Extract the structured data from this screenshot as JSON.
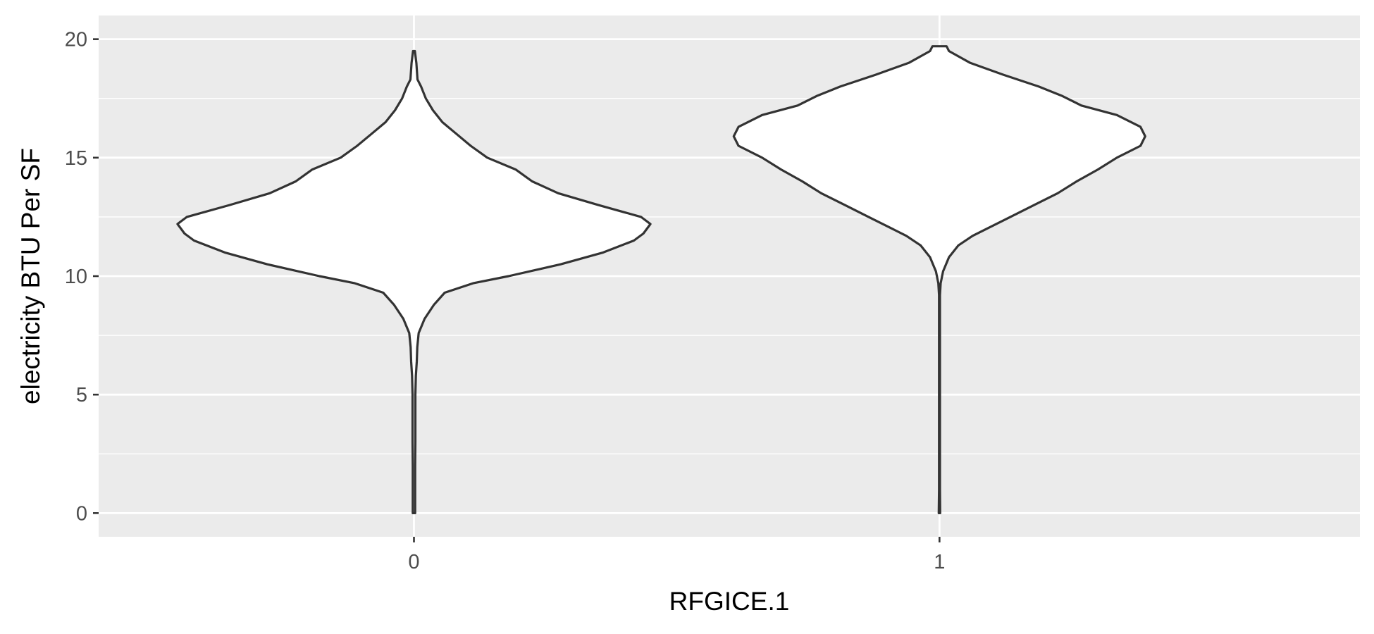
{
  "chart_data": {
    "type": "violin",
    "xlabel": "RFGICE.1",
    "ylabel": "electricity BTU Per SF",
    "categories": [
      "0",
      "1"
    ],
    "ylim": [
      -1,
      21
    ],
    "yticks": [
      0,
      5,
      10,
      15,
      20
    ],
    "grid": true,
    "legend": "none",
    "colors": {
      "panel": "#ebebeb",
      "grid": "#ffffff",
      "violin_fill": "#ffffff",
      "violin_outline": "#333333",
      "tick_text": "#4d4d4d",
      "axis_title": "#000000"
    },
    "series": [
      {
        "category": "0",
        "y_min": 0,
        "y_max": 19.5,
        "profile": [
          [
            0.0,
            0.005
          ],
          [
            1.0,
            0.005
          ],
          [
            2.0,
            0.005
          ],
          [
            3.0,
            0.006
          ],
          [
            4.0,
            0.006
          ],
          [
            5.0,
            0.006
          ],
          [
            5.8,
            0.008
          ],
          [
            6.4,
            0.012
          ],
          [
            7.0,
            0.014
          ],
          [
            7.6,
            0.02
          ],
          [
            8.2,
            0.045
          ],
          [
            8.8,
            0.085
          ],
          [
            9.3,
            0.13
          ],
          [
            9.7,
            0.25
          ],
          [
            10.0,
            0.4
          ],
          [
            10.5,
            0.62
          ],
          [
            11.0,
            0.8
          ],
          [
            11.5,
            0.93
          ],
          [
            11.8,
            0.97
          ],
          [
            12.2,
            1.0
          ],
          [
            12.5,
            0.96
          ],
          [
            13.0,
            0.78
          ],
          [
            13.5,
            0.61
          ],
          [
            14.0,
            0.5
          ],
          [
            14.5,
            0.43
          ],
          [
            15.0,
            0.31
          ],
          [
            15.5,
            0.24
          ],
          [
            16.0,
            0.18
          ],
          [
            16.5,
            0.12
          ],
          [
            17.0,
            0.08
          ],
          [
            17.5,
            0.05
          ],
          [
            18.0,
            0.03
          ],
          [
            18.3,
            0.015
          ],
          [
            19.0,
            0.01
          ],
          [
            19.5,
            0.004
          ]
        ]
      },
      {
        "category": "1",
        "y_min": 0,
        "y_max": 19.7,
        "profile": [
          [
            0.0,
            0.003
          ],
          [
            1.0,
            0.002
          ],
          [
            3.0,
            0.002
          ],
          [
            5.0,
            0.002
          ],
          [
            7.0,
            0.002
          ],
          [
            8.5,
            0.002
          ],
          [
            9.2,
            0.002
          ],
          [
            9.7,
            0.005
          ],
          [
            10.2,
            0.015
          ],
          [
            10.8,
            0.04
          ],
          [
            11.3,
            0.08
          ],
          [
            11.7,
            0.14
          ],
          [
            12.0,
            0.2
          ],
          [
            12.5,
            0.3
          ],
          [
            13.0,
            0.4
          ],
          [
            13.5,
            0.5
          ],
          [
            14.0,
            0.58
          ],
          [
            14.5,
            0.67
          ],
          [
            15.0,
            0.75
          ],
          [
            15.5,
            0.85
          ],
          [
            15.9,
            0.87
          ],
          [
            16.3,
            0.85
          ],
          [
            16.8,
            0.75
          ],
          [
            17.2,
            0.6
          ],
          [
            17.6,
            0.52
          ],
          [
            18.0,
            0.42
          ],
          [
            18.5,
            0.27
          ],
          [
            19.0,
            0.13
          ],
          [
            19.5,
            0.04
          ],
          [
            19.7,
            0.03
          ]
        ]
      }
    ]
  }
}
